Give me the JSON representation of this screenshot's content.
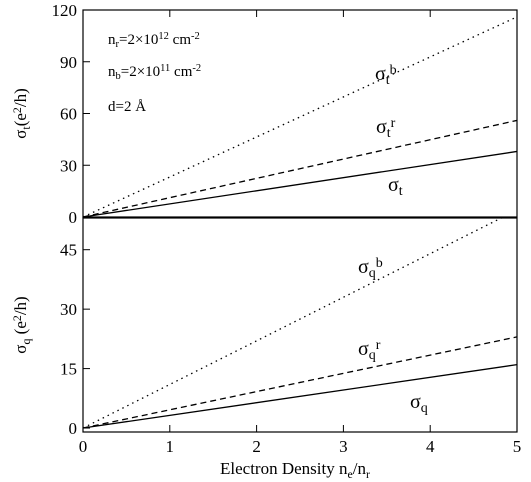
{
  "chart_data": [
    {
      "type": "line",
      "ylabel": {
        "parts": [
          {
            "text": "σ"
          },
          {
            "text": "t",
            "shift": "sub"
          },
          {
            "text": "(e"
          },
          {
            "text": "2",
            "shift": "sup"
          },
          {
            "text": "/h)"
          }
        ]
      },
      "x": [
        0,
        5
      ],
      "xlim": [
        0,
        5
      ],
      "xticks": [
        0,
        1,
        2,
        3,
        4,
        5
      ],
      "ylim": [
        0,
        120
      ],
      "yticks": [
        0,
        30,
        60,
        90,
        120
      ],
      "series": [
        {
          "style": "dotted",
          "color": "#000000",
          "values": [
            0,
            116
          ]
        },
        {
          "style": "dashed",
          "color": "#000000",
          "values": [
            0,
            56
          ]
        },
        {
          "style": "solid",
          "color": "#000000",
          "values": [
            0,
            38
          ]
        }
      ],
      "annotations": [
        {
          "parts": [
            {
              "text": "σ"
            },
            {
              "text": "t",
              "shift": "sub"
            },
            {
              "text": "b",
              "shift": "sup"
            }
          ]
        },
        {
          "parts": [
            {
              "text": "σ"
            },
            {
              "text": "t",
              "shift": "sub"
            },
            {
              "text": "r",
              "shift": "sup"
            }
          ]
        },
        {
          "parts": [
            {
              "text": "σ"
            },
            {
              "text": "t",
              "shift": "sub"
            }
          ]
        },
        {
          "parts": [
            {
              "text": "n"
            },
            {
              "text": "r",
              "shift": "sub"
            },
            {
              "text": "=2×10"
            },
            {
              "text": "12",
              "shift": "sup"
            },
            {
              "text": " cm"
            },
            {
              "text": "-2",
              "shift": "sup"
            }
          ]
        },
        {
          "parts": [
            {
              "text": "n"
            },
            {
              "text": "b",
              "shift": "sub"
            },
            {
              "text": "=2×10"
            },
            {
              "text": "11",
              "shift": "sup"
            },
            {
              "text": " cm"
            },
            {
              "text": "-2",
              "shift": "sup"
            }
          ]
        },
        {
          "parts": [
            {
              "text": "d=2 Å"
            }
          ]
        }
      ]
    },
    {
      "type": "line",
      "ylabel": {
        "parts": [
          {
            "text": "σ"
          },
          {
            "text": "q",
            "shift": "sub"
          },
          {
            "text": " (e"
          },
          {
            "text": "2",
            "shift": "sup"
          },
          {
            "text": "/h)"
          }
        ]
      },
      "xlabel": {
        "parts": [
          {
            "text": "Electron Density n"
          },
          {
            "text": "e",
            "shift": "sub"
          },
          {
            "text": "/n"
          },
          {
            "text": "r",
            "shift": "sub"
          }
        ]
      },
      "x": [
        0,
        5
      ],
      "xlim": [
        0,
        5
      ],
      "xticks": [
        0,
        1,
        2,
        3,
        4,
        5
      ],
      "ylim": [
        -1,
        53
      ],
      "yticks": [
        0,
        15,
        30,
        45
      ],
      "series": [
        {
          "style": "dotted",
          "color": "#000000",
          "values": [
            0,
            55
          ]
        },
        {
          "style": "dashed",
          "color": "#000000",
          "values": [
            0,
            23
          ]
        },
        {
          "style": "solid",
          "color": "#000000",
          "values": [
            0,
            16
          ]
        }
      ],
      "annotations": [
        {
          "parts": [
            {
              "text": "σ"
            },
            {
              "text": "q",
              "shift": "sub"
            },
            {
              "text": "b",
              "shift": "sup"
            }
          ]
        },
        {
          "parts": [
            {
              "text": "σ"
            },
            {
              "text": "q",
              "shift": "sub"
            },
            {
              "text": "r",
              "shift": "sup"
            }
          ]
        },
        {
          "parts": [
            {
              "text": "σ"
            },
            {
              "text": "q",
              "shift": "sub"
            }
          ]
        }
      ]
    }
  ]
}
